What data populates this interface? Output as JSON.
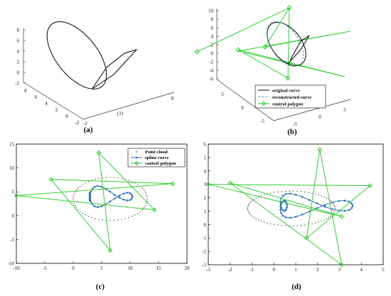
{
  "figure": {
    "panel_labels": [
      "(a)",
      "(b)",
      "(c)",
      "(d)"
    ]
  },
  "chart_data": [
    {
      "id": "a",
      "type": "line",
      "projection": "3d",
      "title": "",
      "xlabel": "",
      "ylabel": "",
      "zlabel": "",
      "z_ticks": [
        "8",
        "6",
        "4",
        "2",
        "0",
        "-2"
      ],
      "x_ticks": [
        "8",
        "6",
        "4",
        "2",
        "0",
        "-2"
      ],
      "y_ticks": [
        "-2",
        "0",
        "2",
        "4",
        "6",
        "8"
      ],
      "y_ticks_printed": [
        "-2",
        "",
        "(1)",
        "",
        "",
        "8"
      ],
      "series": [
        {
          "color": "#000000"
        }
      ],
      "grid": false
    },
    {
      "id": "b",
      "type": "line",
      "projection": "3d",
      "title": "",
      "xlabel": "",
      "ylabel": "",
      "zlabel": "",
      "z_ticks": [
        "10",
        "8",
        "6",
        "4",
        "2",
        "0",
        "-2",
        "-4",
        "-6"
      ],
      "x_ticks": [
        "5",
        "0",
        "-5"
      ],
      "y_ticks": [
        "-5",
        "0",
        "5"
      ],
      "legend": {
        "placement": "lower-right",
        "entries": [
          "original curve",
          "reconstructed curve",
          "control polygon"
        ]
      },
      "series": [
        {
          "name": "original curve",
          "color": "#000000",
          "style": "solid"
        },
        {
          "name": "reconstructed curve",
          "color": "#4aa8b8",
          "style": "dashed"
        },
        {
          "name": "control polygon",
          "color": "#33cc33",
          "style": "solid",
          "marker": "diamond"
        }
      ],
      "grid": false
    },
    {
      "id": "c",
      "type": "scatter",
      "title": "",
      "xlabel": "",
      "ylabel": "",
      "xlim": [
        -10,
        20
      ],
      "ylim": [
        -10,
        15
      ],
      "x_ticks": [
        "-10",
        "-5",
        "0",
        "5",
        "10",
        "15",
        "20"
      ],
      "y_ticks": [
        "15",
        "10",
        "5",
        "0",
        "-5",
        "-10"
      ],
      "legend": {
        "placement": "top-right",
        "entries": [
          "Point cloud",
          "spline curve",
          "control polygon"
        ]
      },
      "series": [
        {
          "name": "Point cloud",
          "kind": "ellipse-points",
          "center": [
            6.5,
            3.5
          ],
          "radii": [
            6.5,
            4.5
          ]
        },
        {
          "name": "spline curve",
          "color": "#2e6fb5",
          "marker": "dot"
        },
        {
          "name": "control polygon",
          "color": "#33cc33",
          "marker": "diamond",
          "x": [
            17.5,
            -10,
            14.3,
            4.5,
            6.5,
            -3.9,
            17.5
          ],
          "y": [
            6.7,
            4.2,
            1.2,
            13.2,
            -7.3,
            7.6,
            6.7
          ]
        }
      ],
      "grid": false
    },
    {
      "id": "d",
      "type": "scatter",
      "title": "",
      "xlabel": "",
      "ylabel": "",
      "xlim": [
        -3,
        5
      ],
      "ylim": [
        -3,
        6
      ],
      "x_ticks": [
        "-3",
        "-2",
        "-1",
        "0",
        "1",
        "2",
        "3",
        "4",
        "5"
      ],
      "y_ticks": [
        "6",
        "5",
        "4",
        "3",
        "2",
        "1",
        "0",
        "-1",
        "-2",
        "-3"
      ],
      "series": [
        {
          "name": "",
          "kind": "ellipse-points",
          "center": [
            0.8,
            1.2
          ],
          "radii": [
            2.0,
            1.3
          ]
        },
        {
          "name": "",
          "color": "#2e6fb5",
          "marker": "dot"
        },
        {
          "name": "",
          "color": "#33cc33",
          "marker": "diamond",
          "x": [
            -3,
            4.4,
            1.5,
            2.1,
            3.1,
            -2,
            3.1,
            -3
          ],
          "y": [
            3.0,
            2.9,
            -1.0,
            5.6,
            -3.0,
            3.1,
            0.6,
            3.0
          ]
        }
      ],
      "grid": false
    }
  ]
}
